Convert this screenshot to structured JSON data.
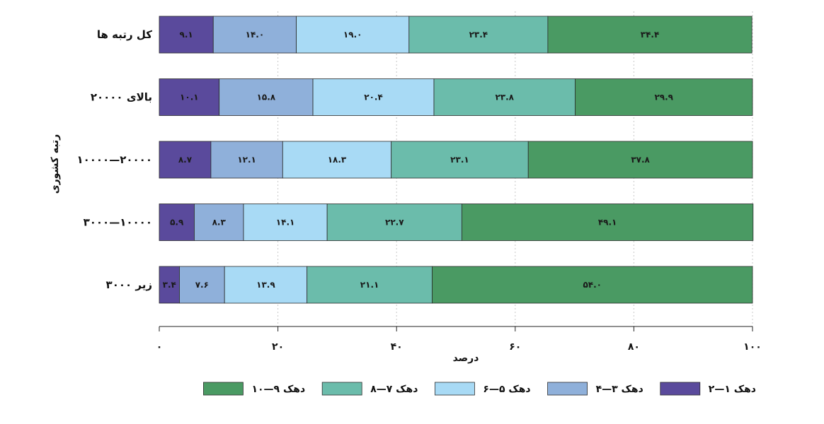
{
  "chart_data": {
    "type": "bar",
    "orientation": "horizontal",
    "stacked": true,
    "title": "",
    "xlabel": "درصد",
    "ylabel": "رتبه کشوری",
    "xlim": [
      0,
      100
    ],
    "x_ticks": [
      0,
      20,
      40,
      60,
      80,
      100
    ],
    "x_tick_labels": [
      "۰",
      "۲۰",
      "۴۰",
      "۶۰",
      "۸۰",
      "۱۰۰"
    ],
    "grid": "vertical dotted",
    "legend_position": "bottom",
    "categories": [
      "کل رتبه ها",
      "بالای ۲۰۰۰۰",
      "۱۰۰۰۰—۲۰۰۰۰",
      "۳۰۰۰—۱۰۰۰۰",
      "زیر ۳۰۰۰"
    ],
    "series": [
      {
        "name": "دهک ۱—۲",
        "color": "#5a4a9c",
        "values": [
          9.1,
          10.1,
          8.7,
          5.9,
          3.4
        ],
        "labels": [
          "۹.۱",
          "۱۰.۱",
          "۸.۷",
          "۵.۹",
          "۳.۴"
        ]
      },
      {
        "name": "دهک ۳—۴",
        "color": "#8fb0da",
        "values": [
          14.0,
          15.8,
          12.1,
          8.3,
          7.6
        ],
        "labels": [
          "۱۴.۰",
          "۱۵.۸",
          "۱۲.۱",
          "۸.۳",
          "۷.۶"
        ]
      },
      {
        "name": "دهک ۵—۶",
        "color": "#a8daf5",
        "values": [
          19.0,
          20.4,
          18.3,
          14.1,
          13.9
        ],
        "labels": [
          "۱۹.۰",
          "۲۰.۴",
          "۱۸.۳",
          "۱۴.۱",
          "۱۳.۹"
        ]
      },
      {
        "name": "دهک ۷—۸",
        "color": "#6bbcab",
        "values": [
          23.4,
          23.8,
          23.1,
          22.7,
          21.1
        ],
        "labels": [
          "۲۳.۴",
          "۲۳.۸",
          "۲۳.۱",
          "۲۲.۷",
          "۲۱.۱"
        ]
      },
      {
        "name": "دهک ۹—۱۰",
        "color": "#4a9a63",
        "values": [
          34.4,
          29.9,
          37.8,
          49.1,
          54.0
        ],
        "labels": [
          "۳۴.۴",
          "۲۹.۹",
          "۳۷.۸",
          "۴۹.۱",
          "۵۴.۰"
        ]
      }
    ]
  }
}
